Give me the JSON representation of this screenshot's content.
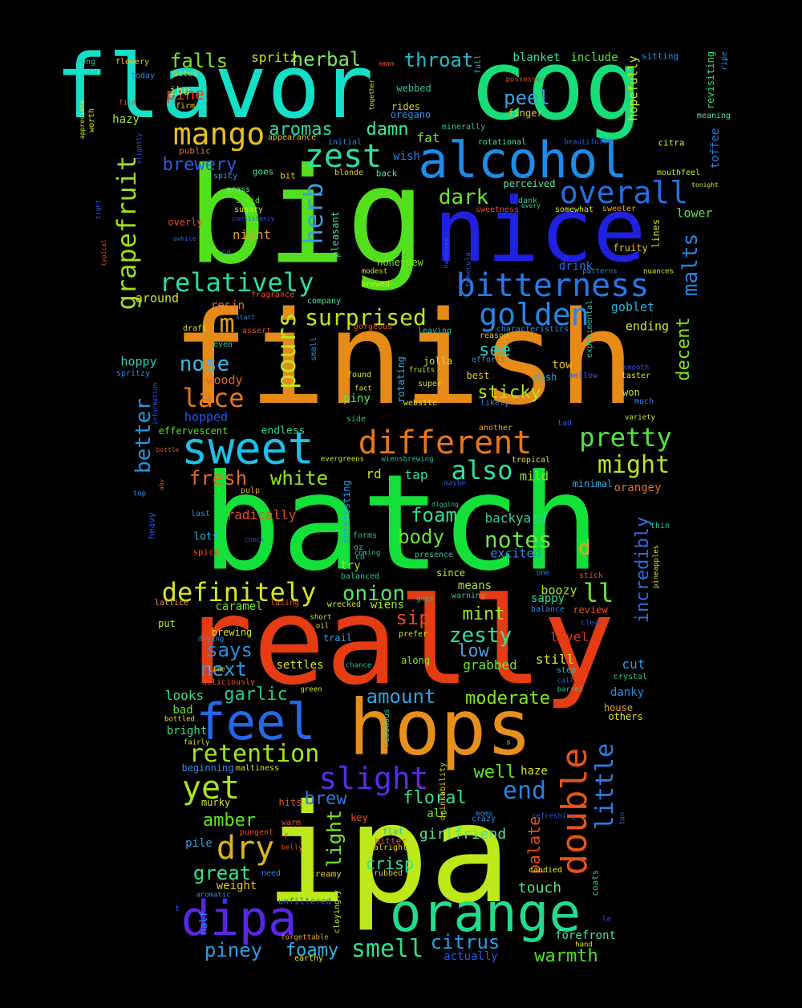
{
  "words": [
    {
      "text": "flavor",
      "color": "#14e0c8"
    },
    {
      "text": "cog",
      "color": "#18de7a"
    },
    {
      "text": "big",
      "color": "#52e01e"
    },
    {
      "text": "finish",
      "color": "#e68a18"
    },
    {
      "text": "batch",
      "color": "#14e03a"
    },
    {
      "text": "really",
      "color": "#e63c14"
    },
    {
      "text": "ipa",
      "color": "#bde81a"
    },
    {
      "text": "nice",
      "color": "#2020e0"
    },
    {
      "text": "alcohol",
      "color": "#1e8ce8"
    },
    {
      "text": "hops",
      "color": "#e6901c"
    },
    {
      "text": "orange",
      "color": "#22dc8c"
    },
    {
      "text": "sweet",
      "color": "#1ec0e6"
    },
    {
      "text": "feel",
      "color": "#2468e8"
    },
    {
      "text": "dipa",
      "color": "#5a26e6"
    },
    {
      "text": "different",
      "color": "#e6761c"
    },
    {
      "text": "bitterness",
      "color": "#2878e8"
    },
    {
      "text": "double",
      "color": "#e6521c"
    },
    {
      "text": "golden",
      "color": "#2686e6"
    },
    {
      "text": "overall",
      "color": "#2470e6"
    },
    {
      "text": "mango",
      "color": "#e6c01e"
    },
    {
      "text": "zest",
      "color": "#2ce0a0"
    },
    {
      "text": "relatively",
      "color": "#2adca6"
    },
    {
      "text": "pours",
      "color": "#c2e61c"
    },
    {
      "text": "grapefruit",
      "color": "#9ee01e"
    },
    {
      "text": "definitely",
      "color": "#d8e61c"
    },
    {
      "text": "retention",
      "color": "#a4e61e"
    },
    {
      "text": "slight",
      "color": "#5a2ce6"
    },
    {
      "text": "yet",
      "color": "#a6e61c"
    },
    {
      "text": "dry",
      "color": "#dfb41e"
    },
    {
      "text": "pretty",
      "color": "#52e642"
    },
    {
      "text": "might",
      "color": "#b8e61c"
    },
    {
      "text": "also",
      "color": "#2ee0a2"
    },
    {
      "text": "little",
      "color": "#2a7ee6"
    },
    {
      "text": "smell",
      "color": "#32e08a"
    },
    {
      "text": "lace",
      "color": "#e6781c"
    },
    {
      "text": "surprised",
      "color": "#c0e61c"
    },
    {
      "text": "herb",
      "color": "#3c9ce8"
    },
    {
      "text": "m",
      "color": "#e69c1c"
    },
    {
      "text": "malts",
      "color": "#2288e6"
    },
    {
      "text": "better",
      "color": "#2496e6"
    },
    {
      "text": "nose",
      "color": "#3ab8e6"
    },
    {
      "text": "onion",
      "color": "#52e666"
    },
    {
      "text": "falls",
      "color": "#7ee61c"
    },
    {
      "text": "herbal",
      "color": "#7ee660"
    },
    {
      "text": "throat",
      "color": "#1ebec8"
    },
    {
      "text": "aromas",
      "color": "#28dca0"
    },
    {
      "text": "damn",
      "color": "#3ce6a0"
    },
    {
      "text": "brewery",
      "color": "#2c5ae6"
    },
    {
      "text": "dark",
      "color": "#6ae62c"
    },
    {
      "text": "peel",
      "color": "#3ca0e6"
    },
    {
      "text": "fresh",
      "color": "#e66a1c"
    },
    {
      "text": "white",
      "color": "#8ee61c"
    },
    {
      "text": "foam",
      "color": "#2ee096"
    },
    {
      "text": "body",
      "color": "#6ae62c"
    },
    {
      "text": "notes",
      "color": "#6ee640"
    },
    {
      "text": "sticky",
      "color": "#b0e61e"
    },
    {
      "text": "see",
      "color": "#2ec6c0"
    },
    {
      "text": "decent",
      "color": "#7ee61c"
    },
    {
      "text": "incredibly",
      "color": "#2a6ee6"
    },
    {
      "text": "ll",
      "color": "#6ee630"
    },
    {
      "text": "d",
      "color": "#e6a81c"
    },
    {
      "text": "zesty",
      "color": "#36e0a4"
    },
    {
      "text": "low",
      "color": "#4a9ae6"
    },
    {
      "text": "mint",
      "color": "#a2e61c"
    },
    {
      "text": "sip",
      "color": "#e64a1c"
    },
    {
      "text": "next",
      "color": "#2e9ce6"
    },
    {
      "text": "says",
      "color": "#2e8ee6"
    },
    {
      "text": "garlic",
      "color": "#2ec49a"
    },
    {
      "text": "amount",
      "color": "#2aa6e6"
    },
    {
      "text": "moderate",
      "color": "#84e61c"
    },
    {
      "text": "end",
      "color": "#2a80e6"
    },
    {
      "text": "well",
      "color": "#5ce61c"
    },
    {
      "text": "brew",
      "color": "#2c7ae6"
    },
    {
      "text": "floral",
      "color": "#3ae08c"
    },
    {
      "text": "light",
      "color": "#7ae61c"
    },
    {
      "text": "great",
      "color": "#3ae08a"
    },
    {
      "text": "amber",
      "color": "#60e61c"
    },
    {
      "text": "citrus",
      "color": "#2a9ee6"
    },
    {
      "text": "piney",
      "color": "#2a9ee6"
    },
    {
      "text": "foamy",
      "color": "#2ab4e6"
    },
    {
      "text": "warmth",
      "color": "#4ae61c"
    },
    {
      "text": "palate",
      "color": "#e6501c"
    },
    {
      "text": "crisp",
      "color": "#2ee0a0"
    },
    {
      "text": "girlfriend",
      "color": "#4ee68c"
    },
    {
      "text": "touch",
      "color": "#4ae68a"
    },
    {
      "text": "pine",
      "color": "#e63c1c"
    },
    {
      "text": "spritz",
      "color": "#d8e61c"
    },
    {
      "text": "ibu",
      "color": "#c0e650"
    },
    {
      "text": "hazy",
      "color": "#9ee61c"
    },
    {
      "text": "blanket",
      "color": "#36e0a4"
    },
    {
      "text": "include",
      "color": "#5ce62c"
    },
    {
      "text": "fat",
      "color": "#7ee61c"
    },
    {
      "text": "wish",
      "color": "#2c82e6"
    },
    {
      "text": "hopefully",
      "color": "#d8e61c"
    },
    {
      "text": "revisiting",
      "color": "#2ee07a"
    },
    {
      "text": "toffee",
      "color": "#2a7ee6"
    },
    {
      "text": "lower",
      "color": "#52e63c"
    },
    {
      "text": "night",
      "color": "#e6a01c"
    },
    {
      "text": "around",
      "color": "#d0e61c"
    },
    {
      "text": "resin",
      "color": "#e6781c"
    },
    {
      "text": "goblet",
      "color": "#2ab4e6"
    },
    {
      "text": "ending",
      "color": "#d8e61c"
    },
    {
      "text": "hoppy",
      "color": "#2ed0b0"
    },
    {
      "text": "woody",
      "color": "#e6641c"
    },
    {
      "text": "hopped",
      "color": "#2a5ae6"
    },
    {
      "text": "endless",
      "color": "#32d0a0"
    },
    {
      "text": "effervescent",
      "color": "#52e61c"
    },
    {
      "text": "piny",
      "color": "#5ce65c"
    },
    {
      "text": "rd",
      "color": "#c2e61c"
    },
    {
      "text": "tap",
      "color": "#2ee0a4"
    },
    {
      "text": "mild",
      "color": "#a0e61c"
    },
    {
      "text": "backyard",
      "color": "#2ed0a8"
    },
    {
      "text": "excited",
      "color": "#2a8ee6"
    },
    {
      "text": "radically",
      "color": "#e6501c"
    },
    {
      "text": "lots",
      "color": "#2ab8e6"
    },
    {
      "text": "tow",
      "color": "#e6c01c"
    },
    {
      "text": "won",
      "color": "#c8e61c"
    },
    {
      "text": "drink",
      "color": "#2a6ee6"
    },
    {
      "text": "fruity",
      "color": "#e6c01c"
    },
    {
      "text": "lines",
      "color": "#b8e61c"
    },
    {
      "text": "boozy",
      "color": "#a6e61c"
    },
    {
      "text": "sappy",
      "color": "#36e08a"
    },
    {
      "text": "caramel",
      "color": "#6ee61c"
    },
    {
      "text": "wiens",
      "color": "#a6e61c"
    },
    {
      "text": "level",
      "color": "#e63c1c"
    },
    {
      "text": "still",
      "color": "#d8e61c"
    },
    {
      "text": "grabbed",
      "color": "#6ee62c"
    },
    {
      "text": "cut",
      "color": "#2a9ee6"
    },
    {
      "text": "danky",
      "color": "#2a8ee6"
    },
    {
      "text": "settles",
      "color": "#d8e61c"
    },
    {
      "text": "looks",
      "color": "#36e08a"
    },
    {
      "text": "bad",
      "color": "#5ce62c"
    },
    {
      "text": "bright",
      "color": "#36e08a"
    },
    {
      "text": "haze",
      "color": "#d8e61c"
    },
    {
      "text": "ale",
      "color": "#5ce62c"
    },
    {
      "text": "pile",
      "color": "#2a9ee6"
    },
    {
      "text": "weight",
      "color": "#e6c81c"
    },
    {
      "text": "actually",
      "color": "#2a5ae6"
    },
    {
      "text": "forefront",
      "color": "#4ae6a0"
    },
    {
      "text": "orangey",
      "color": "#e6701c"
    },
    {
      "text": "minimal",
      "color": "#2ab0e6"
    },
    {
      "text": "try",
      "color": "#a6e61c"
    },
    {
      "text": "since",
      "color": "#d8e61c"
    },
    {
      "text": "means",
      "color": "#a6e61c"
    },
    {
      "text": "trail",
      "color": "#2a9ee6"
    },
    {
      "text": "along",
      "color": "#8ee61c"
    },
    {
      "text": "house",
      "color": "#e6a81c"
    },
    {
      "text": "others",
      "color": "#d8e61c"
    },
    {
      "text": "pleasant",
      "color": "#2ee0a4"
    },
    {
      "text": "honeydew",
      "color": "#7ee61c"
    },
    {
      "text": "perceived",
      "color": "#52e6a0"
    },
    {
      "text": "rotating",
      "color": "#2ab0e6"
    },
    {
      "text": "interesting",
      "color": "#2a9ee6"
    },
    {
      "text": "jolla",
      "color": "#d8e61c"
    },
    {
      "text": "best",
      "color": "#e6c81c"
    },
    {
      "text": "dash",
      "color": "#2ab0e6"
    },
    {
      "text": "rides",
      "color": "#e6c81c"
    },
    {
      "text": "oregano",
      "color": "#2a8ee6"
    },
    {
      "text": "finger",
      "color": "#e6c81c"
    },
    {
      "text": "webbed",
      "color": "#2ec0a0"
    },
    {
      "text": "firm",
      "color": "#e6c81c"
    },
    {
      "text": "noted",
      "color": "#e6c81c"
    },
    {
      "text": "long",
      "color": "#2ec0a0"
    },
    {
      "text": "flowery",
      "color": "#e6c81c"
    },
    {
      "text": "today",
      "color": "#2a8ee6"
    },
    {
      "text": "worth",
      "color": "#d8e61c"
    },
    {
      "text": "public",
      "color": "#e6781c"
    },
    {
      "text": "spicy",
      "color": "#2a9ee6"
    },
    {
      "text": "goes",
      "color": "#52e6a0"
    },
    {
      "text": "bit",
      "color": "#e6c81c"
    },
    {
      "text": "blonde",
      "color": "#e6c81c"
    },
    {
      "text": "back",
      "color": "#52e6a0"
    },
    {
      "text": "grass",
      "color": "#52e6a0"
    },
    {
      "text": "solid",
      "color": "#5ce62c"
    },
    {
      "text": "sugary",
      "color": "#d8e61c"
    },
    {
      "text": "overly",
      "color": "#e6501c"
    },
    {
      "text": "citra",
      "color": "#d8e61c"
    },
    {
      "text": "mouthfeel",
      "color": "#d8e61c"
    },
    {
      "text": "meaning",
      "color": "#52e6a0"
    },
    {
      "text": "rotational",
      "color": "#52e6a0"
    },
    {
      "text": "initial",
      "color": "#2a8ee6"
    },
    {
      "text": "minerally",
      "color": "#2ec0a0"
    },
    {
      "text": "appearance",
      "color": "#e6c81c"
    },
    {
      "text": "fragrance",
      "color": "#e6501c"
    },
    {
      "text": "company",
      "color": "#52e6a0"
    },
    {
      "text": "draft",
      "color": "#d8e61c"
    },
    {
      "text": "assert",
      "color": "#e6501c"
    },
    {
      "text": "even",
      "color": "#2ec0a0"
    },
    {
      "text": "small",
      "color": "#2a8ee6"
    },
    {
      "text": "leaving",
      "color": "#2ec0a0"
    },
    {
      "text": "characteristics",
      "color": "#2a8ee6"
    },
    {
      "text": "reason",
      "color": "#e6c81c"
    },
    {
      "text": "efforts",
      "color": "#2a8ee6"
    },
    {
      "text": "found",
      "color": "#d8e61c"
    },
    {
      "text": "super",
      "color": "#d8e61c"
    },
    {
      "text": "website",
      "color": "#d8e61c"
    },
    {
      "text": "likely",
      "color": "#2a8ee6"
    },
    {
      "text": "side",
      "color": "#2ec0a0"
    },
    {
      "text": "another",
      "color": "#e6a81c"
    },
    {
      "text": "tropical",
      "color": "#d8e61c"
    },
    {
      "text": "pulp",
      "color": "#e6a81c"
    },
    {
      "text": "forms",
      "color": "#2ec0a0"
    },
    {
      "text": "oz",
      "color": "#2ec0a0"
    },
    {
      "text": "co",
      "color": "#2ec0a0"
    },
    {
      "text": "presence",
      "color": "#2ec0a0"
    },
    {
      "text": "balanced",
      "color": "#2ec0a0"
    },
    {
      "text": "prefer",
      "color": "#d8e61c"
    },
    {
      "text": "crystal",
      "color": "#2ec0a0"
    },
    {
      "text": "step",
      "color": "#2ec0a0"
    },
    {
      "text": "stick",
      "color": "#e6501c"
    },
    {
      "text": "review",
      "color": "#e6501c"
    },
    {
      "text": "balance",
      "color": "#2a8ee6"
    },
    {
      "text": "warning",
      "color": "#2ec0a0"
    },
    {
      "text": "guys",
      "color": "#2ec0a0"
    },
    {
      "text": "top",
      "color": "#2a8ee6"
    },
    {
      "text": "last",
      "color": "#2a8ee6"
    },
    {
      "text": "heavy",
      "color": "#2a5ae6"
    },
    {
      "text": "spice",
      "color": "#e6501c"
    },
    {
      "text": "lattice",
      "color": "#e6a81c"
    },
    {
      "text": "put",
      "color": "#d8e61c"
    },
    {
      "text": "brewing",
      "color": "#d8e61c"
    },
    {
      "text": "lime",
      "color": "#e6c81c"
    },
    {
      "text": "deliciously",
      "color": "#e6501c"
    },
    {
      "text": "bottled",
      "color": "#d8e61c"
    },
    {
      "text": "fairly",
      "color": "#d8e61c"
    },
    {
      "text": "beginning",
      "color": "#2a8ee6"
    },
    {
      "text": "murky",
      "color": "#d8e61c"
    },
    {
      "text": "maltiness",
      "color": "#d8e61c"
    },
    {
      "text": "hits",
      "color": "#e6501c"
    },
    {
      "text": "key",
      "color": "#e6501c"
    },
    {
      "text": "warm",
      "color": "#e6501c"
    },
    {
      "text": "pungent",
      "color": "#e6501c"
    },
    {
      "text": "belly",
      "color": "#e6501c"
    },
    {
      "text": "alright",
      "color": "#e6c81c"
    },
    {
      "text": "creamy",
      "color": "#e6c81c"
    },
    {
      "text": "rubbed",
      "color": "#e6c81c"
    },
    {
      "text": "need",
      "color": "#2a8ee6"
    },
    {
      "text": "aromatic",
      "color": "#2a8ee6"
    },
    {
      "text": "unfiltered",
      "color": "#2a5ae6"
    },
    {
      "text": "half",
      "color": "#2a8ee6"
    },
    {
      "text": "cloyingly",
      "color": "#d8e61c"
    },
    {
      "text": "forgettable",
      "color": "#e6a81c"
    },
    {
      "text": "earthy",
      "color": "#d8e61c"
    },
    {
      "text": "resinous",
      "color": "#2ec0a0"
    },
    {
      "text": "drinkability",
      "color": "#e6c81c"
    },
    {
      "text": "moms",
      "color": "#2a8ee6"
    },
    {
      "text": "crazy",
      "color": "#2a8ee6"
    },
    {
      "text": "refreshing",
      "color": "#2a5ae6"
    },
    {
      "text": "candied",
      "color": "#d8e61c"
    },
    {
      "text": "coats",
      "color": "#2ec0a0"
    },
    {
      "text": "tan",
      "color": "#2a5ae6"
    },
    {
      "text": "hand",
      "color": "#d8e61c"
    },
    {
      "text": "flat",
      "color": "#2ec0a0"
    },
    {
      "text": "bitter",
      "color": "#e6501c"
    },
    {
      "text": "sweetness",
      "color": "#e6501c"
    },
    {
      "text": "somewhat",
      "color": "#d8e61c"
    },
    {
      "text": "sweeter",
      "color": "#e6a81c"
    },
    {
      "text": "every",
      "color": "#2ec0a0"
    },
    {
      "text": "dank",
      "color": "#2ec0a0"
    },
    {
      "text": "handsome",
      "color": "#2a5ae6"
    },
    {
      "text": "modest",
      "color": "#d8e61c"
    },
    {
      "text": "brewed",
      "color": "#d8e61c"
    },
    {
      "text": "temecula",
      "color": "#2a5ae6"
    },
    {
      "text": "patterns",
      "color": "#2a8ee6"
    },
    {
      "text": "nuances",
      "color": "#d8e61c"
    },
    {
      "text": "gorgeous",
      "color": "#e6501c"
    },
    {
      "text": "experimental",
      "color": "#2ec0a0"
    },
    {
      "text": "mellow",
      "color": "#2a5ae6"
    },
    {
      "text": "smooth",
      "color": "#2a5ae6"
    },
    {
      "text": "taster",
      "color": "#d8e61c"
    },
    {
      "text": "much",
      "color": "#2a8ee6"
    },
    {
      "text": "variety",
      "color": "#d8e61c"
    },
    {
      "text": "fact",
      "color": "#d8e61c"
    },
    {
      "text": "fruits",
      "color": "#d8e61c"
    },
    {
      "text": "tad",
      "color": "#2a5ae6"
    },
    {
      "text": "evergreens",
      "color": "#d8e61c"
    },
    {
      "text": "wiensbrewing",
      "color": "#2ec0a0"
    },
    {
      "text": "maybe",
      "color": "#2a5ae6"
    },
    {
      "text": "digging",
      "color": "#2ec0a0"
    },
    {
      "text": "coming",
      "color": "#2ec0a0"
    },
    {
      "text": "one",
      "color": "#2a8ee6"
    },
    {
      "text": "pineapples",
      "color": "#d8e61c"
    },
    {
      "text": "thin",
      "color": "#2ec0a0"
    },
    {
      "text": "clear",
      "color": "#2a5ae6"
    },
    {
      "text": "call",
      "color": "#2a5ae6"
    },
    {
      "text": "barrel",
      "color": "#2ec0a0"
    },
    {
      "text": "chance",
      "color": "#2ec0a0"
    },
    {
      "text": "green",
      "color": "#d8e61c"
    },
    {
      "text": "short",
      "color": "#d8e61c"
    },
    {
      "text": "oil",
      "color": "#d8e61c"
    },
    {
      "text": "drying",
      "color": "#2a8ee6"
    },
    {
      "text": "lacing",
      "color": "#e6501c"
    },
    {
      "text": "wrecked",
      "color": "#d8e61c"
    },
    {
      "text": "check",
      "color": "#2a5ae6"
    },
    {
      "text": "bottle",
      "color": "#e6501c"
    },
    {
      "text": "abv",
      "color": "#e6501c"
    },
    {
      "text": "spritzy",
      "color": "#2a8ee6"
    },
    {
      "text": "information",
      "color": "#2a5ae6"
    },
    {
      "text": "start",
      "color": "#2a8ee6"
    },
    {
      "text": "ca",
      "color": "#2a5ae6"
    },
    {
      "text": "consistency",
      "color": "#2a5ae6"
    },
    {
      "text": "awhile",
      "color": "#2a5ae6"
    },
    {
      "text": "typical",
      "color": "#e6501c"
    },
    {
      "text": "tight",
      "color": "#2a5ae6"
    },
    {
      "text": "slightly",
      "color": "#2a5ae6"
    },
    {
      "text": "appreciate",
      "color": "#d8e61c"
    },
    {
      "text": "film",
      "color": "#e6501c"
    },
    {
      "text": "mmmm",
      "color": "#e6501c"
    },
    {
      "text": "together",
      "color": "#d8e61c"
    },
    {
      "text": "full",
      "color": "#2ec0a0"
    },
    {
      "text": "possesses",
      "color": "#e6501c"
    },
    {
      "text": "sitting",
      "color": "#2a8ee6"
    },
    {
      "text": "ripe",
      "color": "#2a8ee6"
    },
    {
      "text": "beautifully",
      "color": "#2a5ae6"
    },
    {
      "text": "tonight",
      "color": "#d8e61c"
    },
    {
      "text": "la",
      "color": "#2a5ae6"
    },
    {
      "text": "t",
      "color": "#2a5ae6"
    },
    {
      "text": "s",
      "color": "#e6c81c"
    },
    {
      "text": "y",
      "color": "#e6501c"
    }
  ]
}
